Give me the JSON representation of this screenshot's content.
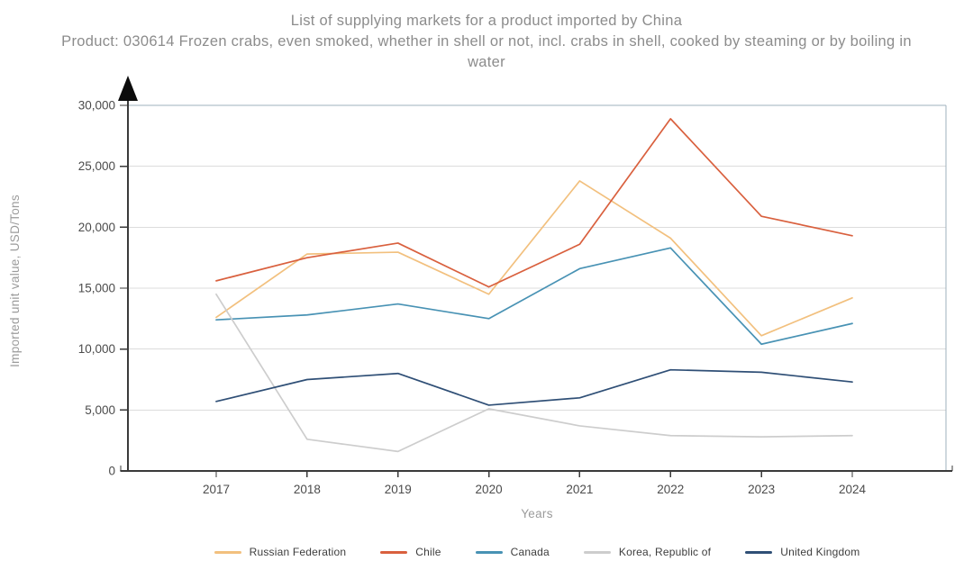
{
  "chart_data": {
    "type": "line",
    "title": "List of supplying markets for a product imported by China",
    "subtitle": "Product: 030614 Frozen crabs, even smoked, whether in shell or not, incl. crabs in shell, cooked by steaming or by boiling in water",
    "xlabel": "Years",
    "ylabel": "Imported unit value, USD/Tons",
    "categories": [
      "2017",
      "2018",
      "2019",
      "2020",
      "2021",
      "2022",
      "2023",
      "2024"
    ],
    "ylim": [
      0,
      30000
    ],
    "yticks": [
      {
        "value": 0,
        "label": "0"
      },
      {
        "value": 5000,
        "label": "5,000"
      },
      {
        "value": 10000,
        "label": "10,000"
      },
      {
        "value": 15000,
        "label": "15,000"
      },
      {
        "value": 20000,
        "label": "20,000"
      },
      {
        "value": 25000,
        "label": "25,000"
      },
      {
        "value": 30000,
        "label": "30,000"
      }
    ],
    "grid": "horizontal",
    "legend_position": "bottom",
    "series": [
      {
        "name": "Russian Federation",
        "color": "#f2c07e",
        "values": [
          12600,
          17800,
          17950,
          14500,
          23800,
          19100,
          11100,
          14200
        ]
      },
      {
        "name": "Chile",
        "color": "#d9603e",
        "values": [
          15600,
          17500,
          18700,
          15100,
          18600,
          28900,
          20900,
          19300
        ]
      },
      {
        "name": "Canada",
        "color": "#4892b4",
        "values": [
          12400,
          12800,
          13700,
          12500,
          16600,
          18300,
          10400,
          12100
        ]
      },
      {
        "name": "Korea, Republic of",
        "color": "#cdcdcd",
        "values": [
          14500,
          2600,
          1600,
          5100,
          3700,
          2900,
          2800,
          2900
        ]
      },
      {
        "name": "United Kingdom",
        "color": "#2f4f76",
        "values": [
          5700,
          7500,
          8000,
          5400,
          6000,
          8300,
          8100,
          7300
        ]
      }
    ],
    "colors": {
      "frame": "#9fb0be",
      "grid": "#dcdcdc",
      "axis": "#3a3a3a",
      "tick_text": "#4b4b4b",
      "title_text": "#8c8c8c",
      "axis_label_text": "#9b9b9b"
    }
  }
}
